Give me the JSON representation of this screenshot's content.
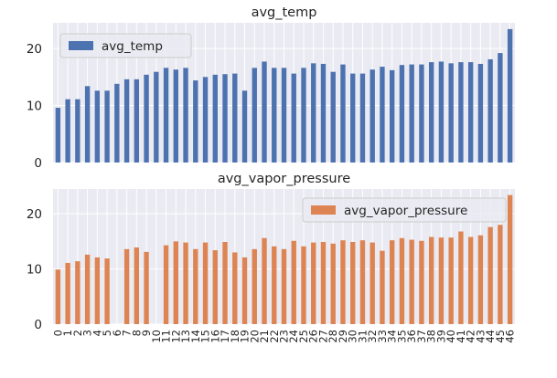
{
  "chart_data": [
    {
      "type": "bar",
      "title": "avg_temp",
      "legend": "top-left",
      "color": "#4C72B0",
      "ylim": [
        0,
        24.5
      ],
      "yticks": [
        0,
        10,
        20
      ],
      "grid": true,
      "categories": [
        "0",
        "1",
        "2",
        "3",
        "4",
        "5",
        "6",
        "7",
        "8",
        "9",
        "10",
        "11",
        "12",
        "13",
        "14",
        "15",
        "16",
        "17",
        "18",
        "19",
        "20",
        "21",
        "22",
        "23",
        "24",
        "25",
        "26",
        "27",
        "28",
        "29",
        "30",
        "31",
        "32",
        "33",
        "34",
        "35",
        "36",
        "37",
        "38",
        "39",
        "40",
        "41",
        "42",
        "43",
        "44",
        "45",
        "46"
      ],
      "series": [
        {
          "name": "avg_temp",
          "values": [
            9.6,
            11.1,
            11.1,
            13.4,
            12.6,
            12.6,
            13.8,
            14.6,
            14.6,
            15.4,
            15.9,
            16.6,
            16.3,
            16.6,
            14.4,
            15.0,
            15.4,
            15.5,
            15.6,
            12.6,
            16.6,
            17.7,
            16.6,
            16.6,
            15.6,
            16.6,
            17.4,
            17.3,
            15.9,
            17.2,
            15.6,
            15.6,
            16.3,
            16.8,
            16.2,
            17.1,
            17.2,
            17.2,
            17.6,
            17.7,
            17.4,
            17.6,
            17.6,
            17.3,
            18.1,
            19.2,
            23.4
          ]
        }
      ]
    },
    {
      "type": "bar",
      "title": "avg_vapor_pressure",
      "legend": "top-right",
      "color": "#DD8452",
      "ylim": [
        0,
        24.5
      ],
      "yticks": [
        0,
        10,
        20
      ],
      "grid": true,
      "categories": [
        "0",
        "1",
        "2",
        "3",
        "4",
        "5",
        "6",
        "7",
        "8",
        "9",
        "10",
        "11",
        "12",
        "13",
        "14",
        "15",
        "16",
        "17",
        "18",
        "19",
        "20",
        "21",
        "22",
        "23",
        "24",
        "25",
        "26",
        "27",
        "28",
        "29",
        "30",
        "31",
        "32",
        "33",
        "34",
        "35",
        "36",
        "37",
        "38",
        "39",
        "40",
        "41",
        "42",
        "43",
        "44",
        "45",
        "46"
      ],
      "series": [
        {
          "name": "avg_vapor_pressure",
          "values": [
            9.9,
            11.1,
            11.4,
            12.6,
            12.1,
            11.9,
            0,
            13.6,
            13.9,
            13.1,
            0,
            14.3,
            15.0,
            14.8,
            13.6,
            14.8,
            13.4,
            14.9,
            13.0,
            12.1,
            13.6,
            15.6,
            14.1,
            13.6,
            15.1,
            14.1,
            14.8,
            14.9,
            14.6,
            15.2,
            14.9,
            15.2,
            14.8,
            13.3,
            15.2,
            15.6,
            15.3,
            15.1,
            15.8,
            15.7,
            15.7,
            16.8,
            15.8,
            16.1,
            17.6,
            18.0,
            23.4
          ]
        }
      ]
    }
  ]
}
